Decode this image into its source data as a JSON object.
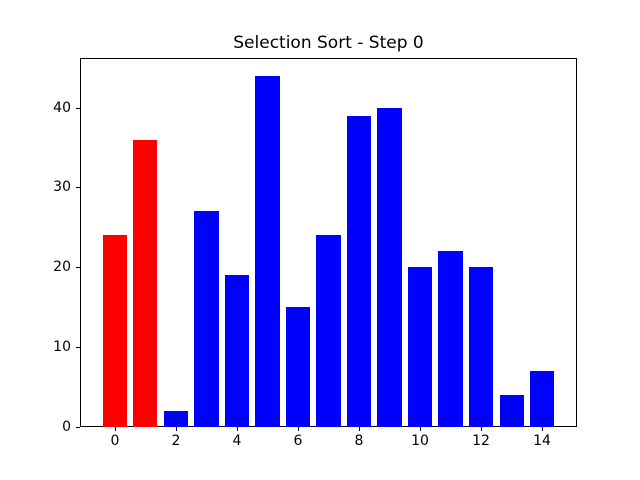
{
  "figure": {
    "background": "#ffffff"
  },
  "chart_data": {
    "type": "bar",
    "title": "Selection Sort - Step 0",
    "xlabel": "",
    "ylabel": "",
    "x": [
      0,
      1,
      2,
      3,
      4,
      5,
      6,
      7,
      8,
      9,
      10,
      11,
      12,
      13,
      14
    ],
    "values": [
      24,
      36,
      2,
      27,
      19,
      44,
      15,
      24,
      39,
      40,
      20,
      22,
      20,
      4,
      7
    ],
    "bar_colors": [
      "#ff0000",
      "#ff0000",
      "#0000ff",
      "#0000ff",
      "#0000ff",
      "#0000ff",
      "#0000ff",
      "#0000ff",
      "#0000ff",
      "#0000ff",
      "#0000ff",
      "#0000ff",
      "#0000ff",
      "#0000ff",
      "#0000ff"
    ],
    "highlight_color": "#ff0000",
    "default_color": "#0000ff",
    "highlighted_indices": [
      0,
      1
    ],
    "bar_width": 0.8,
    "xticks": [
      0,
      2,
      4,
      6,
      8,
      10,
      12,
      14
    ],
    "yticks": [
      0,
      10,
      20,
      30,
      40
    ],
    "xlim": [
      -1.14,
      15.14
    ],
    "ylim": [
      0,
      46.2
    ],
    "grid": false,
    "legend": null
  }
}
